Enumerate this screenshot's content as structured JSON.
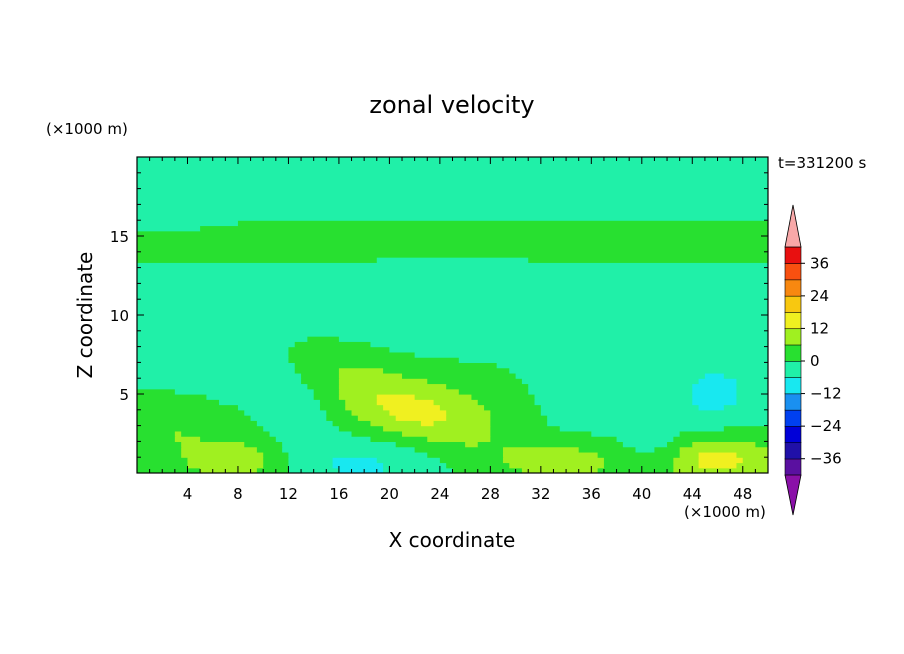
{
  "chart_data": {
    "type": "heatmap",
    "title": "zonal velocity",
    "xlabel": "X coordinate",
    "ylabel": "Z coordinate",
    "x_unit": "(×1000 m)",
    "y_unit": "(×1000 m)",
    "time_label": "t=331200 s",
    "xlim": [
      0,
      50
    ],
    "ylim": [
      0,
      20
    ],
    "x_ticks": [
      4,
      8,
      12,
      16,
      20,
      24,
      28,
      32,
      36,
      40,
      44,
      48
    ],
    "y_ticks": [
      5,
      10,
      15
    ],
    "colorbar": {
      "levels": [
        -42,
        -36,
        -30,
        -24,
        -18,
        -12,
        -6,
        0,
        6,
        12,
        18,
        24,
        30,
        36,
        42
      ],
      "tick_values": [
        -36,
        -24,
        -12,
        0,
        12,
        24,
        36
      ],
      "tick_labels": [
        "−36",
        "−24",
        "−12",
        "0",
        "12",
        "24",
        "36"
      ],
      "colors": [
        "#5a10a0",
        "#2010a8",
        "#0000d8",
        "#0040f0",
        "#1a90f0",
        "#18e8f0",
        "#20f0a8",
        "#28e030",
        "#a0f020",
        "#f0f020",
        "#f8c810",
        "#f88810",
        "#f85010",
        "#e81010"
      ],
      "under_color": "#8a10a8",
      "over_color": "#f8a8a8"
    },
    "features": [
      {
        "x": 25,
        "z": 18.5,
        "sx": 40,
        "sz": 1.6,
        "v": -5
      },
      {
        "x": 25,
        "z": 14.4,
        "sx": 50,
        "sz": 0.9,
        "v": 3
      },
      {
        "x": 25,
        "z": 10.8,
        "sx": 30,
        "sz": 2.2,
        "v": -6
      },
      {
        "x": 19,
        "z": 5.2,
        "sx": 5.5,
        "sz": 1.7,
        "v": 8,
        "slope": -0.38
      },
      {
        "x": 21.5,
        "z": 4,
        "sx": 4,
        "sz": 1.3,
        "v": 4
      },
      {
        "x": 26,
        "z": 3.6,
        "sx": 4.5,
        "sz": 1.6,
        "v": 4
      },
      {
        "x": 18,
        "z": 0.6,
        "sx": 5,
        "sz": 1.4,
        "v": -8
      },
      {
        "x": 46,
        "z": 0.9,
        "sx": 3.2,
        "sz": 1.1,
        "v": 14
      },
      {
        "x": 46,
        "z": 5,
        "sx": 3,
        "sz": 1.8,
        "v": -8
      },
      {
        "x": 36,
        "z": 4.5,
        "sx": 4,
        "sz": 1.9,
        "v": -5
      },
      {
        "x": 3,
        "z": 3,
        "sx": 2.5,
        "sz": 1.4,
        "v": 5
      },
      {
        "x": 8,
        "z": 0.8,
        "sx": 3,
        "sz": 1,
        "v": 10
      },
      {
        "x": 34,
        "z": 0.8,
        "sx": 4,
        "sz": 1,
        "v": 8
      },
      {
        "x": 6,
        "z": 7,
        "sx": 6,
        "sz": 2,
        "v": -4
      },
      {
        "x": 13,
        "z": 3.5,
        "sx": 2,
        "sz": 2,
        "v": -4
      },
      {
        "x": 41,
        "z": 1.5,
        "sx": 2,
        "sz": 1.2,
        "v": -5
      },
      {
        "x": 2,
        "z": 16.5,
        "sx": 3,
        "sz": 1,
        "v": -3
      }
    ]
  }
}
